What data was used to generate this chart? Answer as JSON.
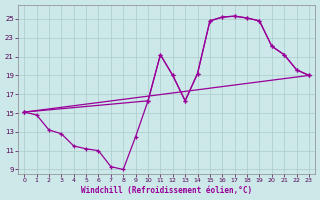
{
  "xlabel": "Windchill (Refroidissement éolien,°C)",
  "xlim": [
    -0.5,
    23.5
  ],
  "ylim": [
    8.5,
    26.5
  ],
  "yticks": [
    9,
    11,
    13,
    15,
    17,
    19,
    21,
    23,
    25
  ],
  "xticks": [
    0,
    1,
    2,
    3,
    4,
    5,
    6,
    7,
    8,
    9,
    10,
    11,
    12,
    13,
    14,
    15,
    16,
    17,
    18,
    19,
    20,
    21,
    22,
    23
  ],
  "bg_color": "#cce8e8",
  "grid_color": "#aacccc",
  "line_color": "#990099",
  "curve1_x": [
    0,
    1,
    2,
    3,
    4,
    5,
    6,
    7,
    8,
    9,
    10,
    11,
    12,
    13,
    14,
    15,
    16,
    17,
    18,
    19,
    20,
    21,
    22,
    23
  ],
  "curve1_y": [
    15.1,
    14.8,
    13.2,
    12.8,
    11.5,
    11.2,
    11.0,
    9.3,
    9.0,
    12.5,
    16.3,
    21.2,
    19.0,
    16.3,
    19.2,
    24.8,
    25.2,
    25.3,
    25.1,
    24.8,
    22.1,
    21.2,
    19.6,
    19.0
  ],
  "curve2_x": [
    0,
    23
  ],
  "curve2_y": [
    15.1,
    19.0
  ],
  "curve3_x": [
    0,
    10,
    11,
    12,
    13,
    14,
    15,
    16,
    17,
    18,
    19,
    20,
    21,
    22,
    23
  ],
  "curve3_y": [
    15.1,
    16.3,
    21.2,
    19.0,
    16.3,
    19.2,
    24.8,
    25.2,
    25.3,
    25.1,
    24.8,
    22.1,
    21.2,
    19.6,
    19.0
  ]
}
